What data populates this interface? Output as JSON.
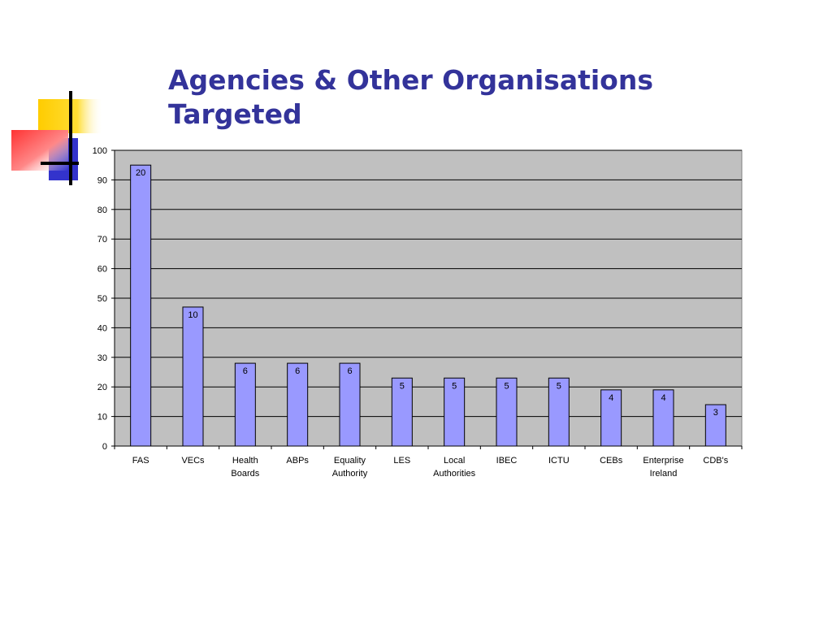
{
  "slide": {
    "title_line1": "Agencies & Other Organisations",
    "title_line2": "Targeted",
    "colors": {
      "title": "#33339a",
      "accent_yellow": "#ffcc00",
      "accent_blue": "#3333cc",
      "accent_red": "#ff3333"
    },
    "decoration_icon": "overlapping-squares-cross-icon"
  },
  "chart_data": {
    "type": "bar",
    "title": "",
    "xlabel": "",
    "ylabel": "",
    "categories": [
      [
        "FAS"
      ],
      [
        "VECs"
      ],
      [
        "Health",
        "Boards"
      ],
      [
        "ABPs"
      ],
      [
        "Equality",
        "Authority"
      ],
      [
        "LES"
      ],
      [
        "Local",
        "Authorities"
      ],
      [
        "IBEC"
      ],
      [
        "ICTU"
      ],
      [
        "CEBs"
      ],
      [
        "Enterprise",
        "Ireland"
      ],
      [
        "CDB's"
      ]
    ],
    "series": [
      {
        "values": [
          95,
          47,
          28,
          28,
          28,
          23,
          23,
          23,
          23,
          19,
          19,
          14
        ]
      }
    ],
    "data_labels": [
      "20",
      "10",
      "6",
      "6",
      "6",
      "5",
      "5",
      "5",
      "5",
      "4",
      "4",
      "3"
    ],
    "ylim": [
      0,
      100
    ],
    "yticks": [
      0,
      10,
      20,
      30,
      40,
      50,
      60,
      70,
      80,
      90,
      100
    ],
    "grid": true,
    "legend": "none",
    "colors": {
      "plot_background": "#c0c0c0",
      "bar_fill": "#9999ff",
      "bar_stroke": "#000000",
      "gridline": "#000000"
    }
  }
}
